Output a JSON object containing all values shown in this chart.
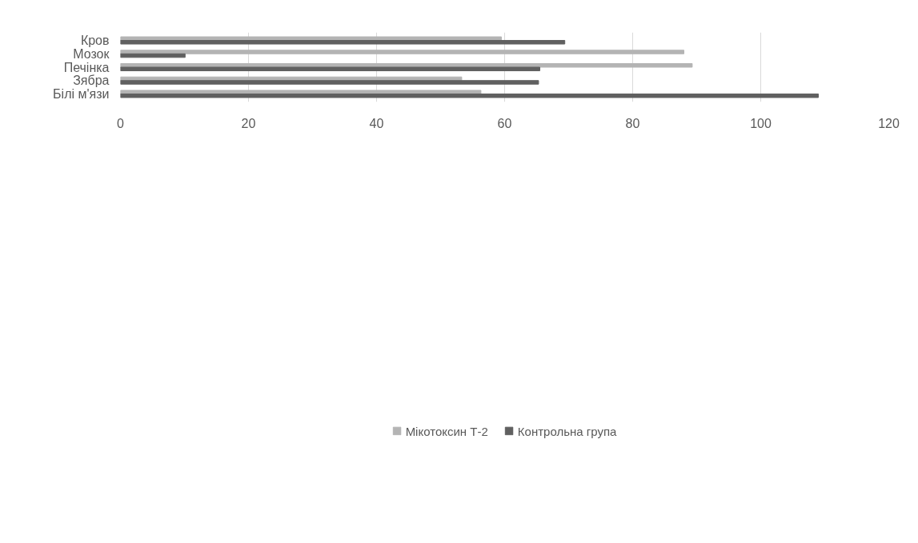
{
  "chart_data": {
    "type": "bar",
    "orientation": "horizontal",
    "categories": [
      "Кров",
      "Мозок",
      "Печінка",
      "Зябра",
      "Білі м'язи"
    ],
    "series": [
      {
        "name": "Мікотоксин Т-2",
        "color": "#b4b4b4",
        "values": [
          59.5,
          88.0,
          89.3,
          53.3,
          56.3
        ]
      },
      {
        "name": "Контрольна група",
        "color": "#606060",
        "values": [
          69.4,
          10.1,
          65.5,
          65.3,
          109.0
        ]
      }
    ],
    "xlim": [
      0,
      120
    ],
    "xticks": [
      0,
      20,
      40,
      60,
      80,
      100,
      120
    ],
    "grid": "x",
    "legend": "bottom"
  }
}
